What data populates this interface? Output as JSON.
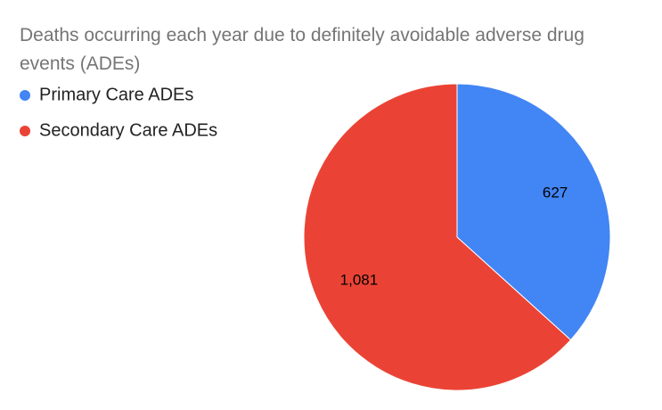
{
  "chart_data": {
    "type": "pie",
    "title": "Deaths occurring each year due to definitely avoidable adverse drug events (ADEs)",
    "categories": [
      "Primary Care ADEs",
      "Secondary Care ADEs"
    ],
    "values": [
      627,
      1081
    ],
    "value_labels": [
      "627",
      "1,081"
    ],
    "colors": [
      "#4285f4",
      "#ea4335"
    ],
    "legend": "top-left"
  }
}
